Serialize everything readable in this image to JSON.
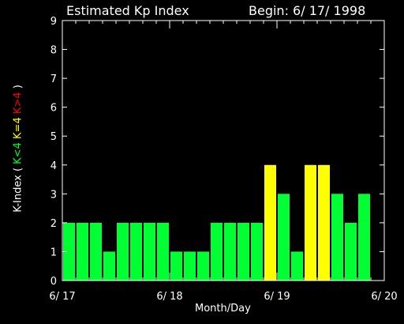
{
  "header": {
    "title": "Estimated Kp Index",
    "begin": "Begin: 6/ 17/ 1998"
  },
  "ylabel_parts": {
    "main": "K-Index ( ",
    "low": "K<4",
    "mid": "K=4",
    "high": "K>4",
    "close": " )"
  },
  "colors": {
    "low": "#00ff33",
    "mid": "#ffff00",
    "high": "#ff0000",
    "axis": "#ffffff",
    "background": "#000000"
  },
  "chart_data": {
    "type": "bar",
    "title": "Estimated Kp Index",
    "xlabel": "Month/Day",
    "ylabel": "K-Index ( K<4 K=4 K>4 )",
    "ylim": [
      0,
      9
    ],
    "yticks": [
      "0",
      "1",
      "2",
      "3",
      "4",
      "5",
      "6",
      "7",
      "8",
      "9"
    ],
    "xticks": [
      "6/ 17",
      "6/ 18",
      "6/ 19",
      "6/ 20"
    ],
    "values": [
      2,
      2,
      2,
      1,
      2,
      2,
      2,
      2,
      1,
      1,
      1,
      2,
      2,
      2,
      2,
      4,
      3,
      1,
      4,
      4,
      3,
      2,
      3
    ]
  }
}
